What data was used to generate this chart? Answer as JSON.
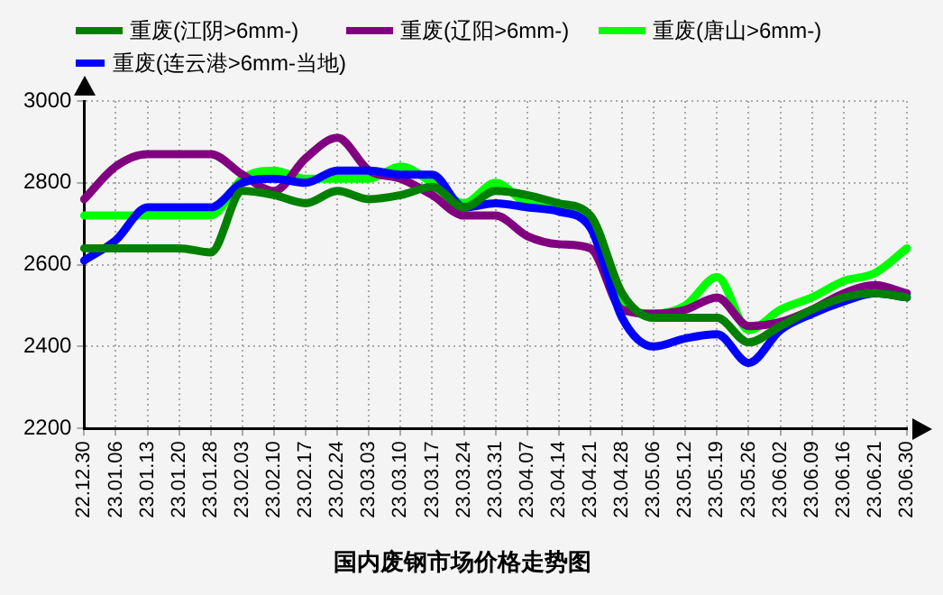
{
  "chart_data": {
    "type": "line",
    "title": "国内废钢市场价格走势图",
    "categories": [
      "22.12.30",
      "23.01.06",
      "23.01.13",
      "23.01.20",
      "23.01.28",
      "23.02.03",
      "23.02.10",
      "23.02.17",
      "23.02.24",
      "23.03.03",
      "23.03.10",
      "23.03.17",
      "23.03.24",
      "23.03.31",
      "23.04.07",
      "23.04.14",
      "23.04.21",
      "23.04.28",
      "23.05.06",
      "23.05.12",
      "23.05.19",
      "23.05.26",
      "23.06.02",
      "23.06.09",
      "23.06.16",
      "23.06.21",
      "23.06.30"
    ],
    "series": [
      {
        "name": "重废(江阴>6mm-)",
        "color": "#008000",
        "values": [
          2640,
          2640,
          2640,
          2640,
          2630,
          2780,
          2770,
          2750,
          2780,
          2760,
          2770,
          2790,
          2740,
          2780,
          2770,
          2750,
          2720,
          2530,
          2470,
          2470,
          2470,
          2410,
          2450,
          2490,
          2520,
          2530,
          2520
        ]
      },
      {
        "name": "重废(连云港>6mm-当地)",
        "color": "#0000ff",
        "values": [
          2610,
          2660,
          2740,
          2740,
          2740,
          2800,
          2810,
          2800,
          2830,
          2830,
          2820,
          2820,
          2740,
          2750,
          2740,
          2730,
          2690,
          2470,
          2400,
          2420,
          2430,
          2360,
          2440,
          2480,
          2510,
          2530,
          2520
        ]
      },
      {
        "name": "重废(辽阳>6mm-)",
        "color": "#800080",
        "values": [
          2760,
          2840,
          2870,
          2870,
          2870,
          2820,
          2780,
          2860,
          2910,
          2830,
          2810,
          2770,
          2720,
          2720,
          2670,
          2650,
          2640,
          2490,
          2480,
          2490,
          2520,
          2450,
          2460,
          2490,
          2530,
          2550,
          2530
        ]
      },
      {
        "name": "重废(唐山>6mm-)",
        "color": "#00ff00",
        "values": [
          2720,
          2720,
          2720,
          2720,
          2720,
          2810,
          2830,
          2810,
          2810,
          2810,
          2840,
          2800,
          2750,
          2800,
          2750,
          2740,
          2710,
          2510,
          2480,
          2500,
          2570,
          2440,
          2490,
          2520,
          2560,
          2580,
          2640
        ]
      }
    ],
    "ylim": [
      2200,
      3000
    ],
    "yticks": [
      2200,
      2400,
      2600,
      2800,
      3000
    ],
    "grid": true,
    "legend": "top",
    "marker": "none",
    "line_style": "solid"
  }
}
